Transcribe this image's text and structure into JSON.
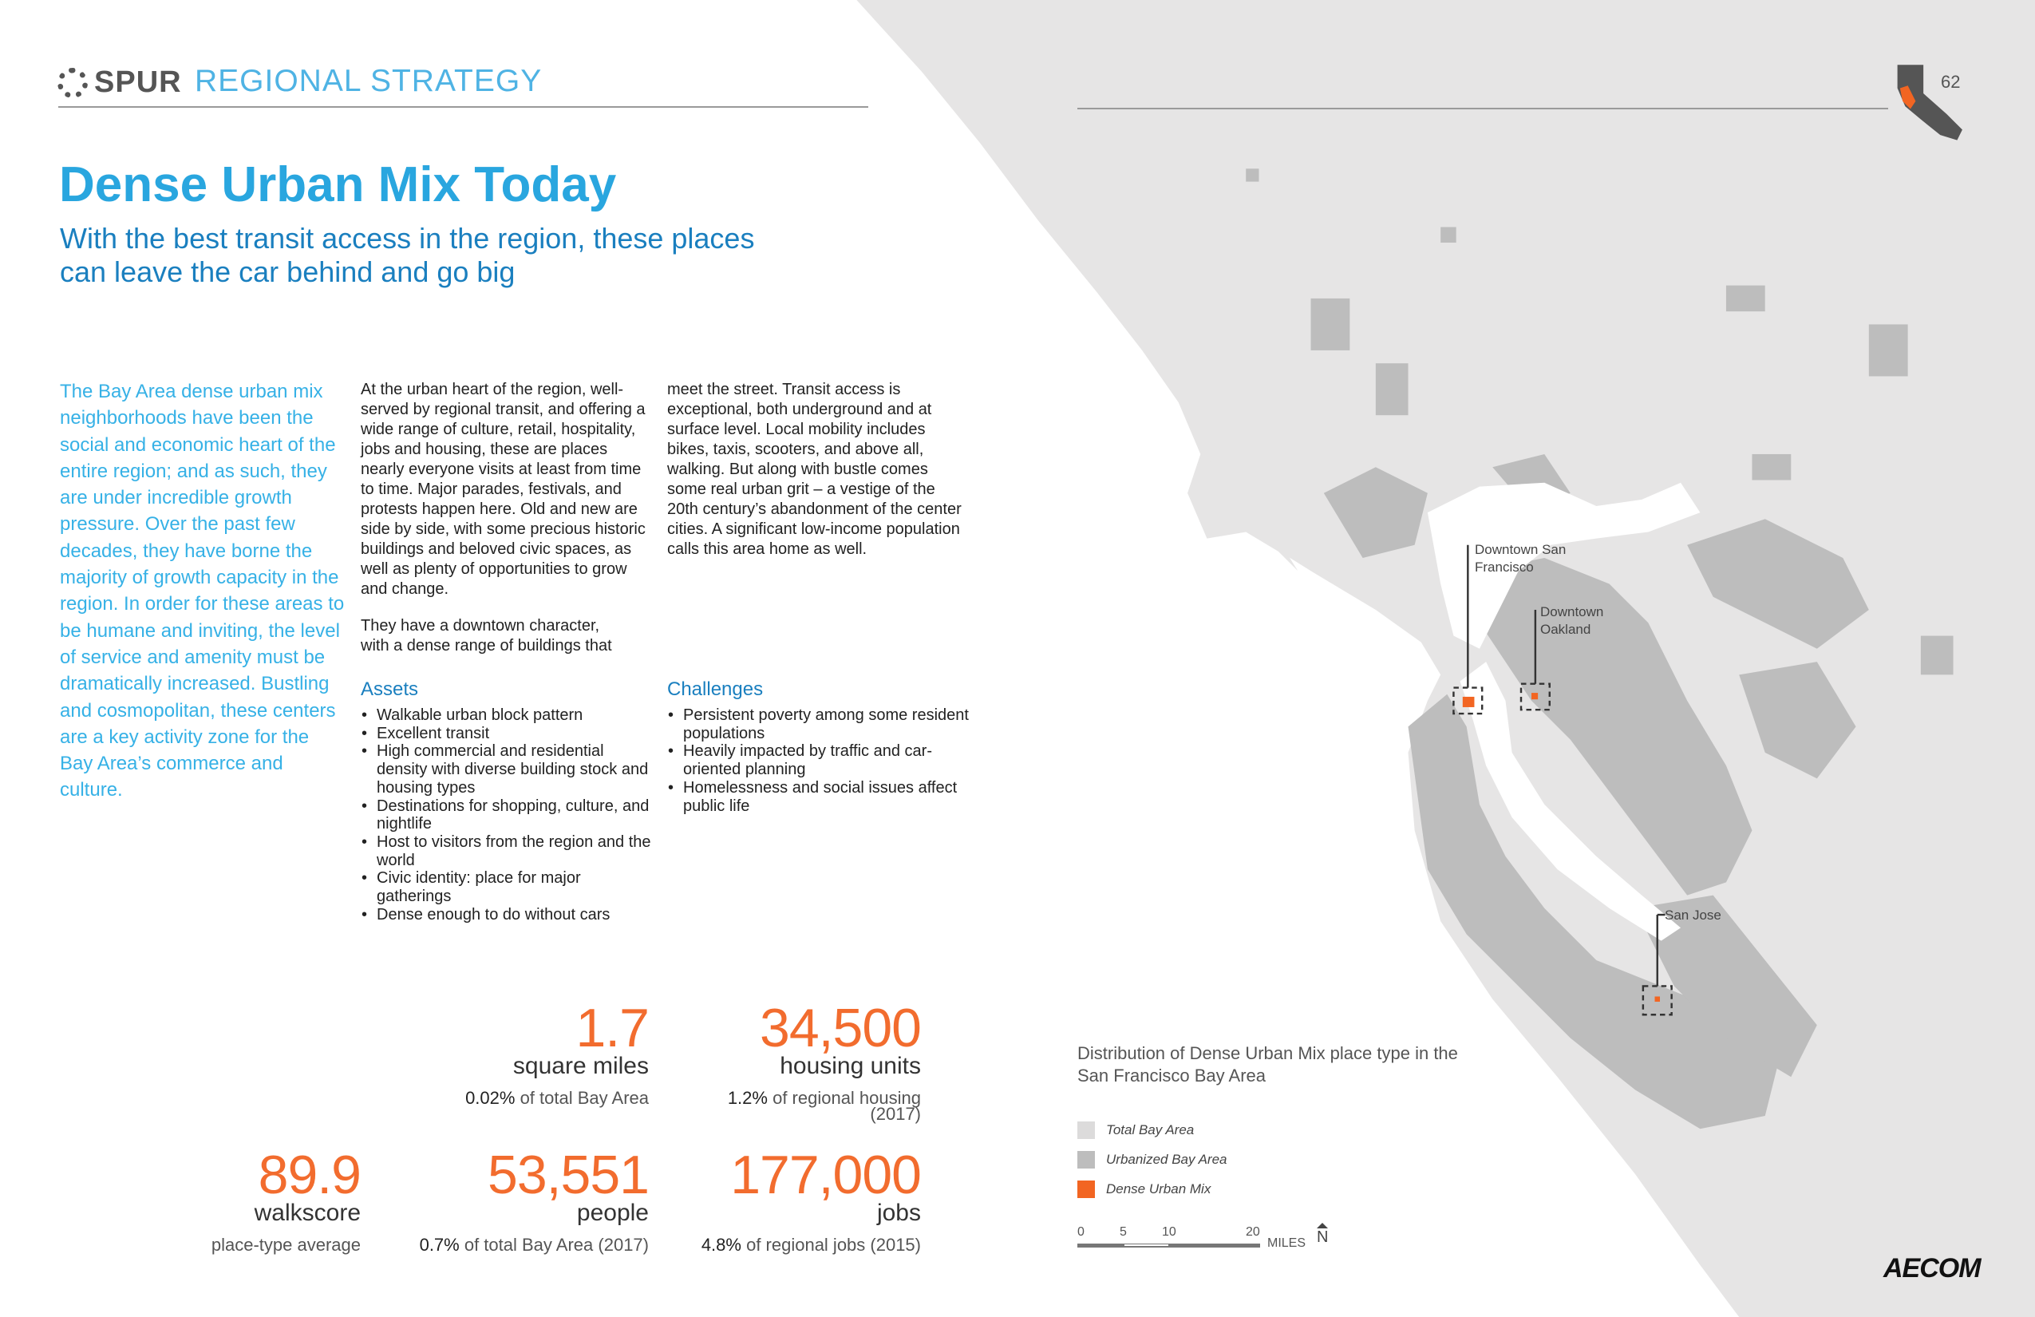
{
  "header": {
    "logo_text": "SPUR",
    "section": "REGIONAL STRATEGY",
    "page_number": "62"
  },
  "title": "Dense Urban Mix Today",
  "subtitle": "With the best transit access in the region, these places can leave the car behind and go big",
  "intro": "The Bay Area dense urban mix neighborhoods have been the social and economic heart of the entire region; and as such, they are under incredible growth pressure. Over the past few decades, they have borne the majority of growth capacity in the region. In order for these areas to be humane and inviting, the level of service and amenity must be dramatically increased. Bustling and cosmopolitan, these centers are a key activity zone for the Bay Area’s commerce and culture.",
  "body": {
    "p1": "At the urban heart of the region, well-served by regional transit, and offering a wide range of culture, retail, hospitality, jobs and housing, these are places nearly everyone visits at least from time to time. Major parades, festivals, and protests happen here. Old and new are side by side, with some precious historic buildings  and beloved civic spaces, as well as plenty of opportunities to grow and change.",
    "p2": "They have a downtown character, with a dense range of buildings that",
    "p3": "meet the street. Transit access is exceptional, both underground and at surface level. Local mobility includes bikes, taxis, scooters, and above all, walking. But along with bustle comes some real urban grit – a vestige of the 20th century’s abandonment of the center cities. A significant low-income population calls this area home as well."
  },
  "assets": {
    "heading": "Assets",
    "items": [
      "Walkable urban block pattern",
      "Excellent transit",
      "High commercial and residential density with diverse building stock and housing types",
      "Destinations for shopping, culture, and nightlife",
      "Host to visitors from the region and the world",
      "Civic identity: place for major gatherings",
      "Dense enough to do without cars"
    ]
  },
  "challenges": {
    "heading": "Challenges",
    "items": [
      "Persistent poverty among some resident populations",
      "Heavily impacted by traffic and car-oriented planning",
      "Homelessness and social issues affect public life"
    ]
  },
  "stats": {
    "area": {
      "value": "1.7",
      "unit": "square miles",
      "pct": "0.02%",
      "note": " of total Bay Area"
    },
    "housing": {
      "value": "34,500",
      "unit": "housing units",
      "pct": "1.2%",
      "note": " of regional housing (2017)"
    },
    "walkscore": {
      "value": "89.9",
      "unit": "walkscore",
      "note": "place-type average"
    },
    "people": {
      "value": "53,551",
      "unit": "people",
      "pct": "0.7%",
      "note": " of total Bay Area (2017)"
    },
    "jobs": {
      "value": "177,000",
      "unit": "jobs",
      "pct": "4.8%",
      "note": " of regional jobs (2015)"
    }
  },
  "map": {
    "labels": {
      "sf": "Downtown San Francisco",
      "oakland": "Downtown Oakland",
      "sj": "San Jose"
    },
    "legend_title": "Distribution of Dense Urban Mix place type in the San Francisco Bay Area",
    "legend": [
      {
        "label": "Total Bay Area",
        "color": "#dcdbdb"
      },
      {
        "label": "Urbanized Bay Area",
        "color": "#bdbdbd"
      },
      {
        "label": "Dense Urban Mix",
        "color": "#f26522"
      }
    ],
    "scale": {
      "ticks": [
        "0",
        "5",
        "10",
        "20"
      ],
      "unit": "MILES",
      "north": "N"
    }
  },
  "footer": {
    "logo": "AECOM"
  }
}
